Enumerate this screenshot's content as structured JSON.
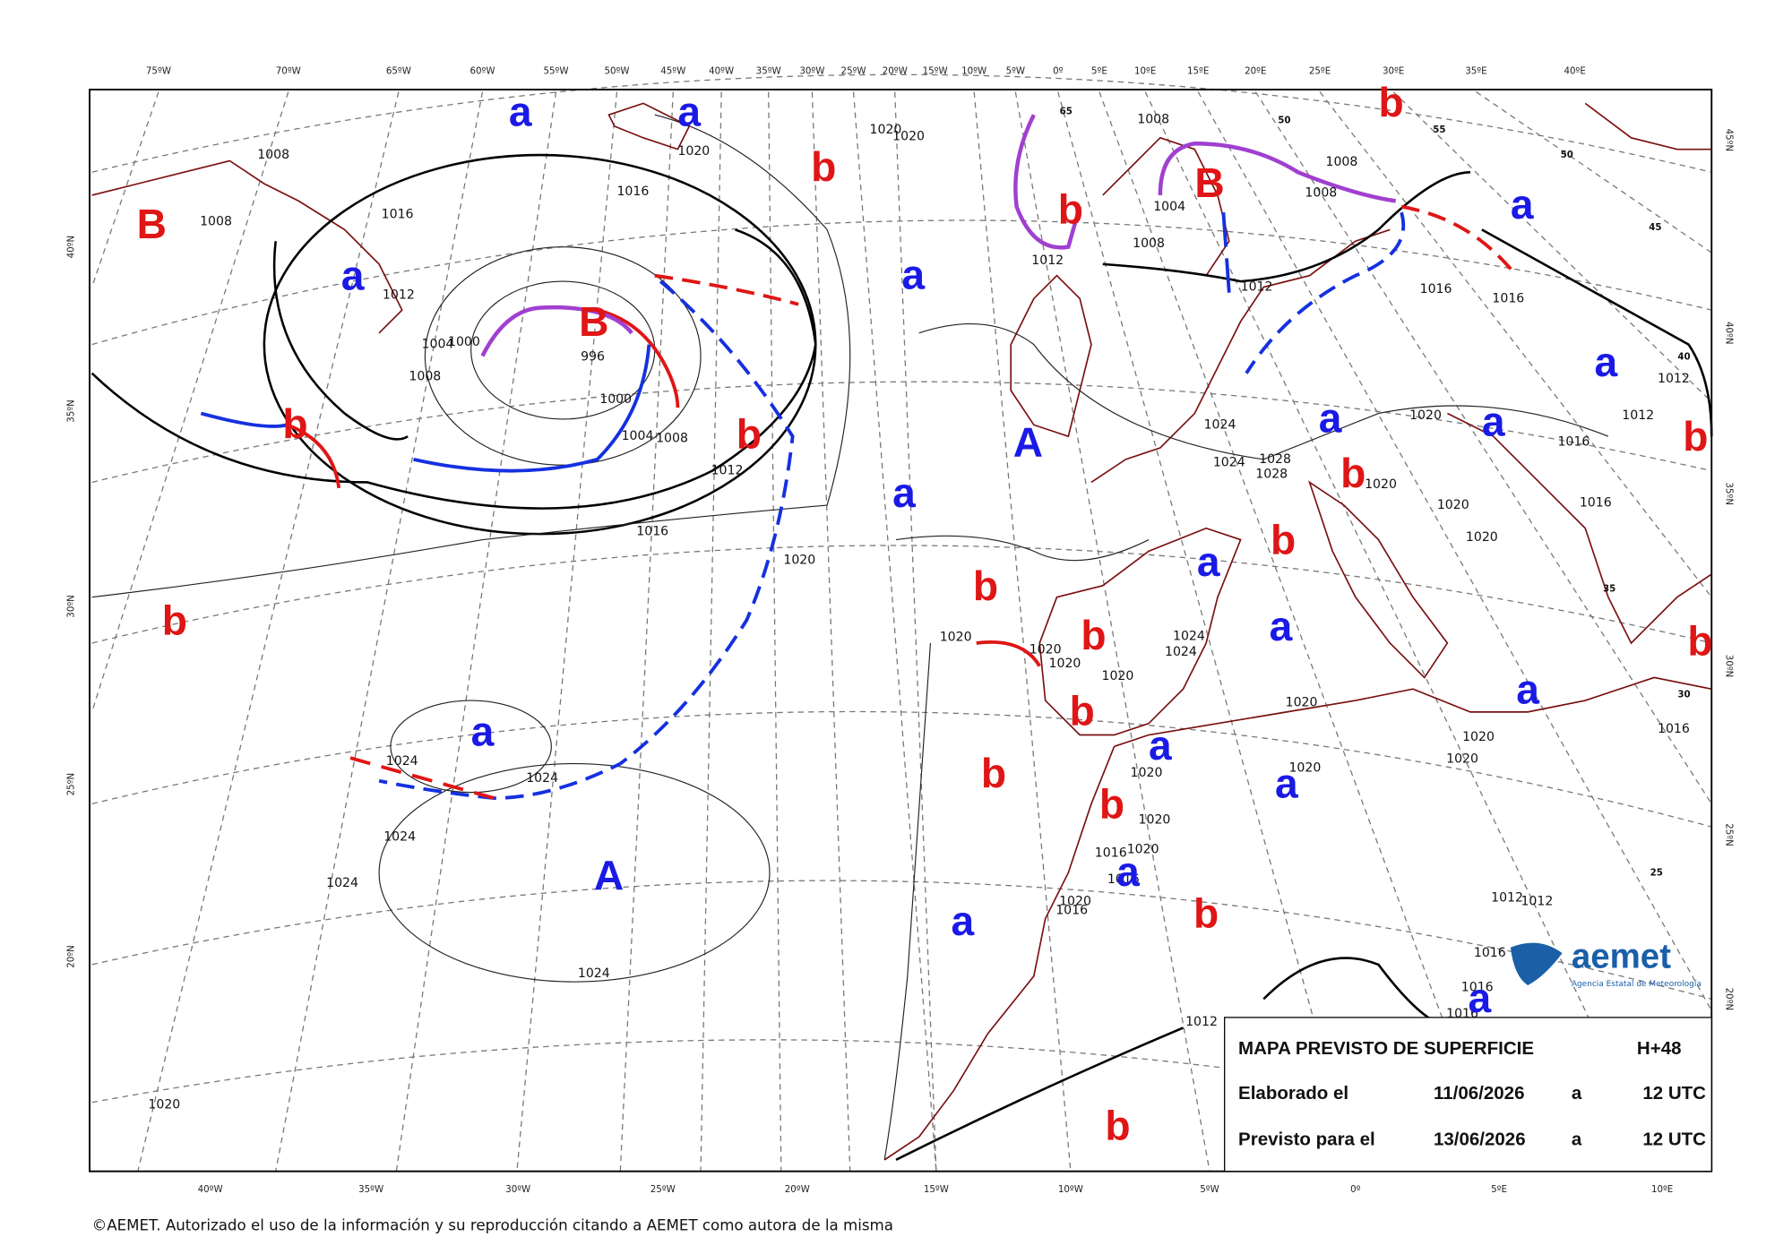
{
  "top_longitudes": [
    "75ºW",
    "70ºW",
    "65ºW",
    "60ºW",
    "55ºW",
    "50ºW",
    "45ºW",
    "40ºW",
    "35ºW",
    "30ºW",
    "25ºW",
    "20ºW",
    "15ºW",
    "10ºW",
    "5ºW",
    "0º",
    "5ºE",
    "10ºE",
    "15ºE",
    "20ºE",
    "25ºE",
    "30ºE",
    "35ºE",
    "40ºE"
  ],
  "bottom_longitudes": [
    "40ºW",
    "35ºW",
    "30ºW",
    "25ºW",
    "20ºW",
    "15ºW",
    "10ºW",
    "5ºW",
    "0º",
    "5ºE",
    "10ºE"
  ],
  "left_latitudes": [
    "40ºN",
    "35ºN",
    "30ºN",
    "25ºN",
    "20ºN"
  ],
  "right_latitudes": [
    "45ºN",
    "40ºN",
    "35ºN",
    "30ºN",
    "25ºN",
    "20ºN"
  ],
  "graticule_labels": [
    "65",
    "55",
    "50",
    "50",
    "45",
    "40",
    "35",
    "30",
    "25"
  ],
  "isobar_labels": [
    "1008",
    "1016",
    "1012",
    "1008",
    "1020",
    "1016",
    "1004",
    "1000",
    "1008",
    "996",
    "1000",
    "1004",
    "1008",
    "1012",
    "1016",
    "1020",
    "1020",
    "1020",
    "1024",
    "1024",
    "1024",
    "1024",
    "1024",
    "1020",
    "1020",
    "1020",
    "1020",
    "1020",
    "1024",
    "1024",
    "1024",
    "1024",
    "1028",
    "1028",
    "1020",
    "1020",
    "1020",
    "1020",
    "1020",
    "1020",
    "1020",
    "1020",
    "1020",
    "1020",
    "1020",
    "1016",
    "1016",
    "1020",
    "1016",
    "1012",
    "1008",
    "1004",
    "1008",
    "1008",
    "1008",
    "1016",
    "1016",
    "1012",
    "1012",
    "1012",
    "1016",
    "1016",
    "1016",
    "1012",
    "1012",
    "1016",
    "1016",
    "1016",
    "1012"
  ],
  "high_color": "#1a1ae6",
  "low_color": "#e01515",
  "highs": [
    "a",
    "a",
    "a",
    "a",
    "A",
    "a",
    "a",
    "a",
    "a",
    "a",
    "a",
    "a",
    "a",
    "a",
    "A",
    "a",
    "a",
    "a",
    "a",
    "a"
  ],
  "lows": [
    "B",
    "b",
    "B",
    "b",
    "b",
    "B",
    "b",
    "b",
    "b",
    "b",
    "b",
    "b",
    "b",
    "b",
    "b",
    "b",
    "b",
    "b",
    "b",
    "b"
  ],
  "info_box": {
    "title": "MAPA PREVISTO DE SUPERFICIE",
    "range": "H+48",
    "made_label": "Elaborado el",
    "made_date": "11/06/2026",
    "made_sep": "a",
    "made_time": "12 UTC",
    "valid_label": "Previsto para el",
    "valid_date": "13/06/2026",
    "valid_sep": "a",
    "valid_time": "12 UTC"
  },
  "logo": {
    "name": "aemet",
    "subtitle": "Agencia Estatal de Meteorología"
  },
  "copyright": "©AEMET. Autorizado el uso de la información y su reproducción citando a AEMET como autora de la misma"
}
